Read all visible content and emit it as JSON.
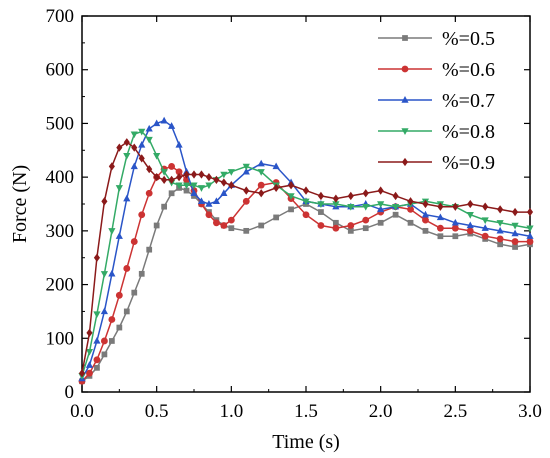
{
  "chart_data": {
    "type": "line",
    "title": "",
    "xlabel": "Time (s)",
    "ylabel": "Force (N)",
    "xlim": [
      0.0,
      3.0
    ],
    "ylim": [
      0,
      700
    ],
    "xticks": [
      0.0,
      0.5,
      1.0,
      1.5,
      2.0,
      2.5,
      3.0
    ],
    "xtick_labels": [
      "0.0",
      "0.5",
      "1.0",
      "1.5",
      "2.0",
      "2.5",
      "3.0"
    ],
    "yticks": [
      0,
      100,
      200,
      300,
      400,
      500,
      600,
      700
    ],
    "ytick_labels": [
      "0",
      "100",
      "200",
      "300",
      "400",
      "500",
      "600",
      "700"
    ],
    "grid": false,
    "legend_position": "top-right",
    "x": [
      0.0,
      0.05,
      0.1,
      0.15,
      0.2,
      0.25,
      0.3,
      0.35,
      0.4,
      0.45,
      0.5,
      0.55,
      0.6,
      0.65,
      0.7,
      0.75,
      0.8,
      0.85,
      0.9,
      0.95,
      1.0,
      1.1,
      1.2,
      1.3,
      1.4,
      1.5,
      1.6,
      1.7,
      1.8,
      1.9,
      2.0,
      2.1,
      2.2,
      2.3,
      2.4,
      2.5,
      2.6,
      2.7,
      2.8,
      2.9,
      3.0
    ],
    "series": [
      {
        "name": "%=0.5",
        "color": "#7a7a7a",
        "marker": "square",
        "values": [
          20,
          30,
          45,
          70,
          95,
          120,
          150,
          185,
          220,
          265,
          310,
          345,
          370,
          380,
          375,
          365,
          350,
          335,
          320,
          310,
          305,
          300,
          310,
          325,
          340,
          350,
          335,
          315,
          300,
          305,
          315,
          330,
          315,
          300,
          290,
          290,
          295,
          285,
          275,
          270,
          275
        ]
      },
      {
        "name": "%=0.6",
        "color": "#cc3333",
        "marker": "circle",
        "values": [
          20,
          35,
          60,
          95,
          135,
          180,
          230,
          280,
          330,
          370,
          400,
          415,
          420,
          410,
          395,
          375,
          350,
          330,
          315,
          310,
          320,
          355,
          385,
          390,
          360,
          330,
          310,
          305,
          310,
          320,
          335,
          345,
          340,
          320,
          305,
          305,
          300,
          290,
          285,
          280,
          280
        ]
      },
      {
        "name": "%=0.7",
        "color": "#2a55c8",
        "marker": "triangle-up",
        "values": [
          25,
          50,
          95,
          150,
          220,
          290,
          360,
          420,
          460,
          490,
          500,
          505,
          495,
          460,
          410,
          370,
          355,
          350,
          355,
          370,
          385,
          410,
          425,
          420,
          390,
          355,
          350,
          345,
          345,
          350,
          340,
          345,
          350,
          330,
          325,
          315,
          310,
          305,
          300,
          295,
          290
        ]
      },
      {
        "name": "%=0.8",
        "color": "#33aa66",
        "marker": "triangle-down",
        "values": [
          30,
          75,
          145,
          220,
          300,
          380,
          440,
          480,
          485,
          470,
          440,
          410,
          390,
          385,
          385,
          385,
          380,
          385,
          395,
          405,
          410,
          420,
          410,
          385,
          365,
          355,
          350,
          350,
          345,
          345,
          350,
          345,
          350,
          355,
          350,
          345,
          330,
          320,
          315,
          310,
          305
        ]
      },
      {
        "name": "%=0.9",
        "color": "#8b1a1a",
        "marker": "diamond",
        "values": [
          35,
          110,
          250,
          355,
          420,
          455,
          465,
          455,
          435,
          415,
          400,
          395,
          395,
          400,
          405,
          405,
          405,
          400,
          395,
          390,
          385,
          375,
          370,
          380,
          385,
          375,
          365,
          360,
          365,
          370,
          375,
          365,
          355,
          350,
          345,
          345,
          350,
          345,
          340,
          335,
          335
        ]
      }
    ]
  }
}
